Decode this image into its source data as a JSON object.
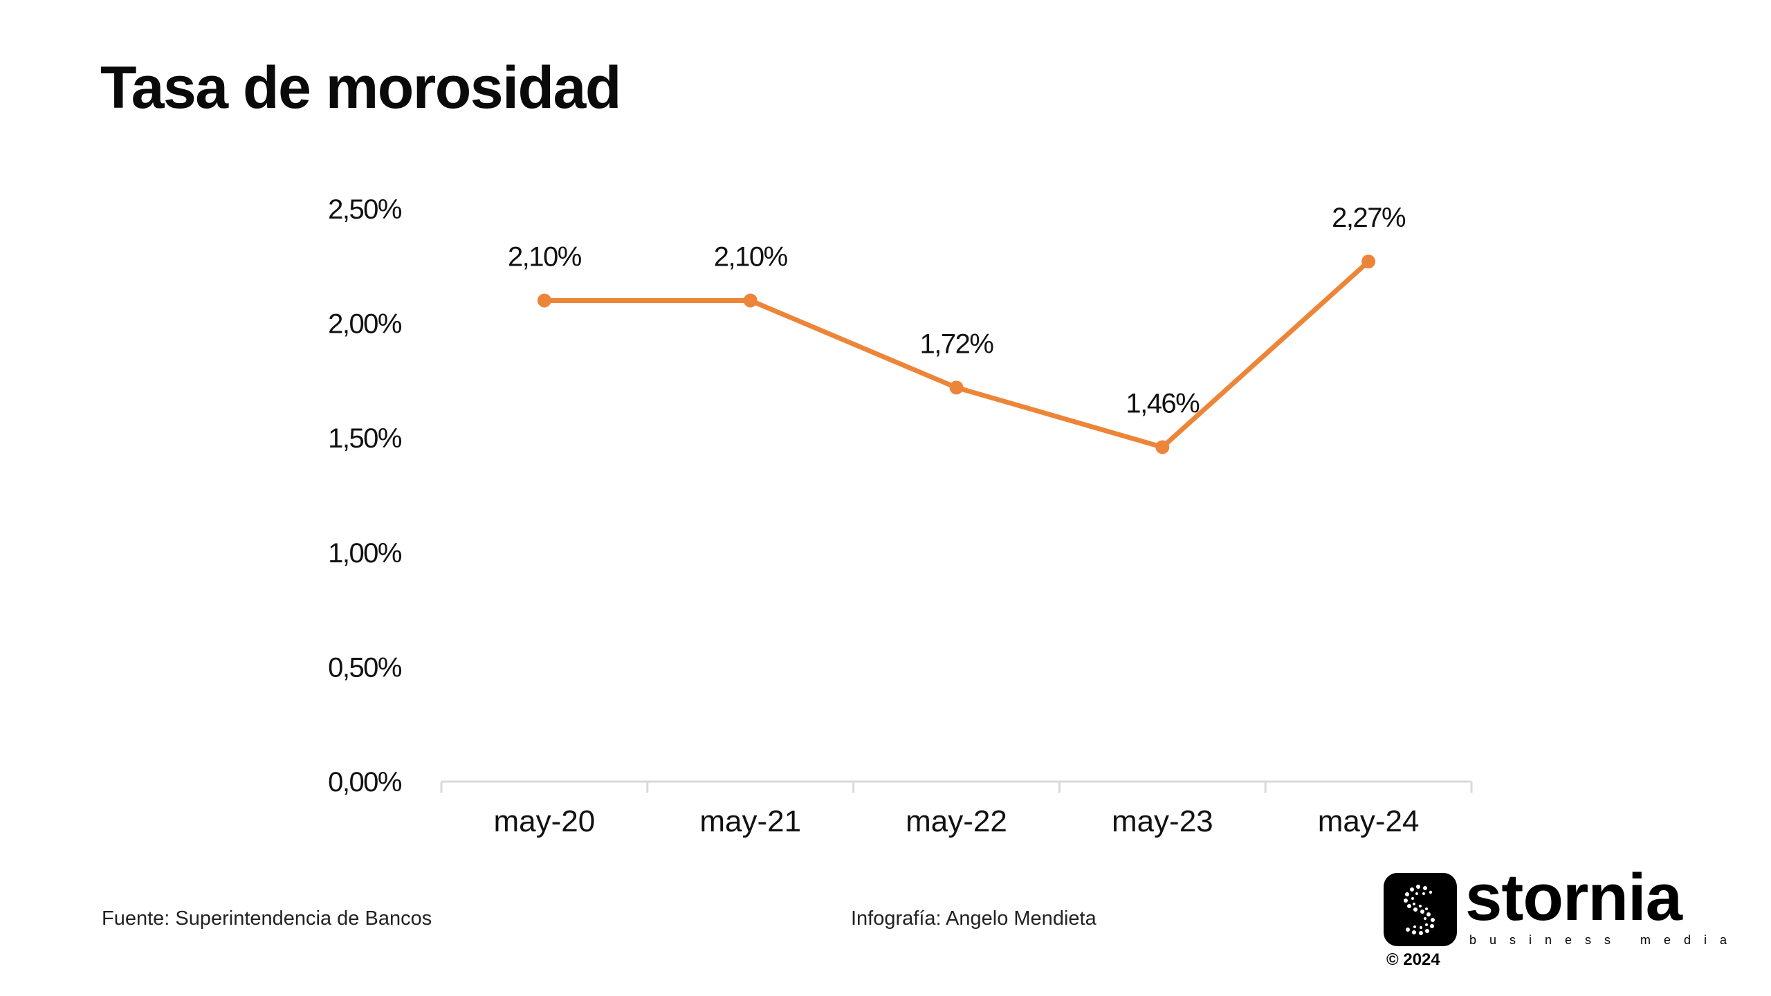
{
  "title": "Tasa de morosidad",
  "footer": {
    "source": "Fuente: Superintendencia de Bancos",
    "credit": "Infografía: Angelo Mendieta"
  },
  "logo": {
    "wordmark": "stornia",
    "tagline": "business media",
    "copyright": "© 2024",
    "icon": "stornia-s-dots-icon"
  },
  "colors": {
    "line": "#ED8539",
    "axis": "#D9D9D9",
    "text": "#111111"
  },
  "chart_data": {
    "type": "line",
    "title": "Tasa de morosidad",
    "categories": [
      "may-20",
      "may-21",
      "may-22",
      "may-23",
      "may-24"
    ],
    "series": [
      {
        "values": [
          2.1,
          2.1,
          1.72,
          1.46,
          2.27
        ],
        "labels": [
          "2,10%",
          "2,10%",
          "1,72%",
          "1,46%",
          "2,27%"
        ]
      }
    ],
    "yticks": [
      {
        "value": 0,
        "label": "0,00%"
      },
      {
        "value": 0.5,
        "label": "0,50%"
      },
      {
        "value": 1.0,
        "label": "1,00%"
      },
      {
        "value": 1.5,
        "label": "1,50%"
      },
      {
        "value": 2.0,
        "label": "2,00%"
      },
      {
        "value": 2.5,
        "label": "2,50%"
      }
    ],
    "ylim": [
      0,
      2.5
    ],
    "grid": false,
    "legend": "none"
  }
}
